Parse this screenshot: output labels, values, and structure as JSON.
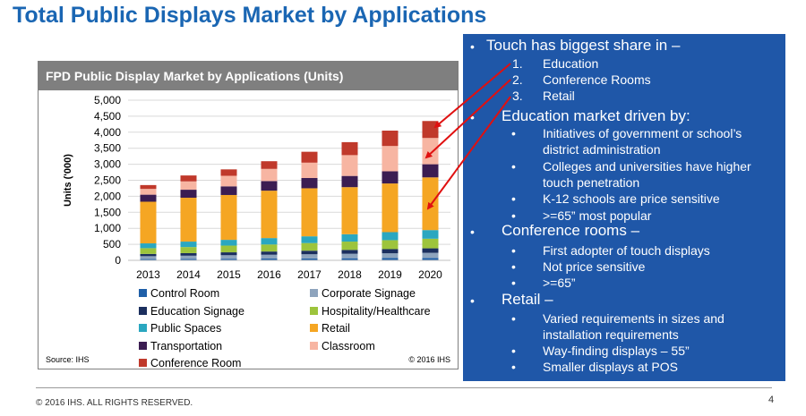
{
  "title": "Total Public Displays Market by Applications",
  "chart_panel": {
    "header": "FPD Public Display Market by Applications (Units)",
    "source": "Source: IHS",
    "copyright": "© 2016 IHS"
  },
  "chart_data": {
    "type": "bar",
    "stacked": true,
    "title": "FPD Public Display Market by Applications (Units)",
    "xlabel": "",
    "ylabel": "Units ('000)",
    "ylim": [
      0,
      5000
    ],
    "yticks": [
      "0",
      "500",
      "1,000",
      "1,500",
      "2,000",
      "2,500",
      "3,000",
      "3,500",
      "4,000",
      "4,500",
      "5,000"
    ],
    "categories": [
      "2013",
      "2014",
      "2015",
      "2016",
      "2017",
      "2018",
      "2019",
      "2020"
    ],
    "series": [
      {
        "name": "Control Room",
        "color": "#1f5fa8",
        "values": [
          40,
          45,
          50,
          55,
          60,
          65,
          70,
          75
        ]
      },
      {
        "name": "Corporate Signage",
        "color": "#8ea4bd",
        "values": [
          90,
          100,
          110,
          120,
          130,
          140,
          150,
          160
        ]
      },
      {
        "name": "Education Signage",
        "color": "#1b2f5e",
        "values": [
          70,
          80,
          90,
          100,
          110,
          120,
          130,
          140
        ]
      },
      {
        "name": "Hospitality/Healthcare",
        "color": "#9dc43c",
        "values": [
          180,
          190,
          210,
          220,
          240,
          260,
          280,
          300
        ]
      },
      {
        "name": "Public Spaces",
        "color": "#2aa7c0",
        "values": [
          150,
          170,
          180,
          200,
          210,
          230,
          250,
          270
        ]
      },
      {
        "name": "Retail",
        "color": "#f5a623",
        "values": [
          1300,
          1370,
          1400,
          1480,
          1500,
          1470,
          1520,
          1645
        ]
      },
      {
        "name": "Transportation",
        "color": "#3b1d52",
        "values": [
          220,
          250,
          270,
          300,
          320,
          350,
          380,
          410
        ]
      },
      {
        "name": "Classroom",
        "color": "#f7b5a2",
        "values": [
          180,
          260,
          330,
          380,
          480,
          650,
          790,
          820
        ]
      },
      {
        "name": "Conference Room",
        "color": "#c0392b",
        "values": [
          120,
          185,
          200,
          240,
          340,
          405,
          480,
          530
        ]
      }
    ],
    "legend": "bottom"
  },
  "right_panel": {
    "touch_heading": "Touch has biggest share in –",
    "touch_items": [
      {
        "num": "1.",
        "text": "Education"
      },
      {
        "num": "2.",
        "text": "Conference Rooms"
      },
      {
        "num": "3.",
        "text": "Retail"
      }
    ],
    "education_heading": "Education market driven by:",
    "education_items": [
      "Initiatives of government or school’s",
      "district administration",
      "Colleges and universities have higher",
      "touch  penetration",
      "K-12 schools are price sensitive",
      ">=65” most popular"
    ],
    "conference_heading": "Conference rooms –",
    "conference_items": [
      "First adopter of touch displays",
      "Not price sensitive",
      ">=65”"
    ],
    "retail_heading": "Retail –",
    "retail_items": [
      "Varied requirements in sizes and",
      "installation requirements",
      "Way-finding displays – 55”",
      "Smaller displays at POS"
    ],
    "bullet": "•"
  },
  "colors": {
    "title": "#1a66b3",
    "panel_bg": "#1f57a8",
    "arrow": "#e01010",
    "header_bg": "#7f7f7f"
  },
  "footer": {
    "copyright": "© 2016 IHS. ALL RIGHTS RESERVED.",
    "page": "4"
  }
}
